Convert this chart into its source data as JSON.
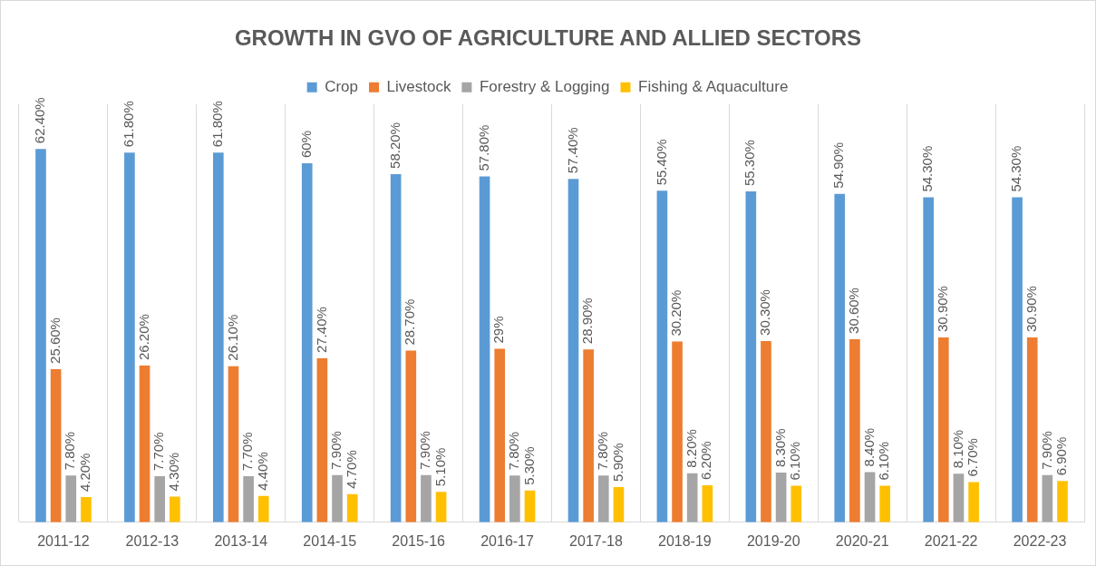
{
  "chart_data": {
    "type": "bar",
    "title": "GROWTH IN GVO OF AGRICULTURE AND ALLIED SECTORS",
    "categories": [
      "2011-12",
      "2012-13",
      "2013-14",
      "2014-15",
      "2015-16",
      "2016-17",
      "2017-18",
      "2018-19",
      "2019-20",
      "2020-21",
      "2021-22",
      "2022-23"
    ],
    "series": [
      {
        "name": "Crop",
        "color": "#5b9bd5",
        "values": [
          62.4,
          61.8,
          61.8,
          60,
          58.2,
          57.8,
          57.4,
          55.4,
          55.3,
          54.9,
          54.3,
          54.3
        ],
        "value_labels": [
          "62.40%",
          "61.80%",
          "61.80%",
          "60%",
          "58.20%",
          "57.80%",
          "57.40%",
          "55.40%",
          "55.30%",
          "54.90%",
          "54.30%",
          "54.30%"
        ]
      },
      {
        "name": "Livestock",
        "color": "#ed7d31",
        "values": [
          25.6,
          26.2,
          26.1,
          27.4,
          28.7,
          29,
          28.9,
          30.2,
          30.3,
          30.6,
          30.9,
          30.9
        ],
        "value_labels": [
          "25.60%",
          "26.20%",
          "26.10%",
          "27.40%",
          "28.70%",
          "29%",
          "28.90%",
          "30.20%",
          "30.30%",
          "30.60%",
          "30.90%",
          "30.90%"
        ]
      },
      {
        "name": "Forestry & Logging",
        "color": "#a5a5a5",
        "values": [
          7.8,
          7.7,
          7.7,
          7.9,
          7.9,
          7.8,
          7.8,
          8.2,
          8.3,
          8.4,
          8.1,
          7.9
        ],
        "value_labels": [
          "7.80%",
          "7.70%",
          "7.70%",
          "7.90%",
          "7.90%",
          "7.80%",
          "7.80%",
          "8.20%",
          "8.30%",
          "8.40%",
          "8.10%",
          "7.90%"
        ]
      },
      {
        "name": "Fishing & Aquaculture",
        "color": "#ffc000",
        "values": [
          4.2,
          4.3,
          4.4,
          4.7,
          5.1,
          5.3,
          5.9,
          6.2,
          6.1,
          6.1,
          6.7,
          6.9
        ],
        "value_labels": [
          "4.20%",
          "4.30%",
          "4.40%",
          "4.70%",
          "5.10%",
          "5.30%",
          "5.90%",
          "6.20%",
          "6.10%",
          "6.10%",
          "6.70%",
          "6.90%"
        ]
      }
    ],
    "grid": "x",
    "legend": "top"
  }
}
